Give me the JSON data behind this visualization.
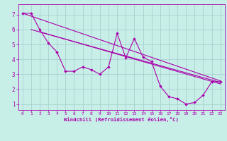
{
  "bg_color": "#c8eee8",
  "line_color": "#aa00aa",
  "grid_color": "#a0cccc",
  "xlabel": "Windchill (Refroidissement éolien,°C)",
  "xlim": [
    -0.5,
    23.5
  ],
  "ylim": [
    0.6,
    7.7
  ],
  "yticks": [
    1,
    2,
    3,
    4,
    5,
    6,
    7
  ],
  "xticks": [
    0,
    1,
    2,
    3,
    4,
    5,
    6,
    7,
    8,
    9,
    10,
    11,
    12,
    13,
    14,
    15,
    16,
    17,
    18,
    19,
    20,
    21,
    22,
    23
  ],
  "main_x": [
    0,
    1,
    2,
    3,
    4,
    5,
    6,
    7,
    8,
    9,
    10,
    11,
    12,
    13,
    14,
    15,
    16,
    17,
    18,
    19,
    20,
    21,
    22,
    23
  ],
  "main_y": [
    7.1,
    7.1,
    6.0,
    5.1,
    4.5,
    3.2,
    3.2,
    3.5,
    3.3,
    3.0,
    3.5,
    5.75,
    4.1,
    5.4,
    4.15,
    3.85,
    2.2,
    1.5,
    1.35,
    1.0,
    1.1,
    1.6,
    2.5,
    2.5
  ],
  "trend1_x": [
    0,
    23
  ],
  "trend1_y": [
    7.1,
    2.55
  ],
  "trend2_x": [
    1,
    23
  ],
  "trend2_y": [
    6.0,
    2.45
  ],
  "trend3_x": [
    2,
    23
  ],
  "trend3_y": [
    5.85,
    2.35
  ]
}
